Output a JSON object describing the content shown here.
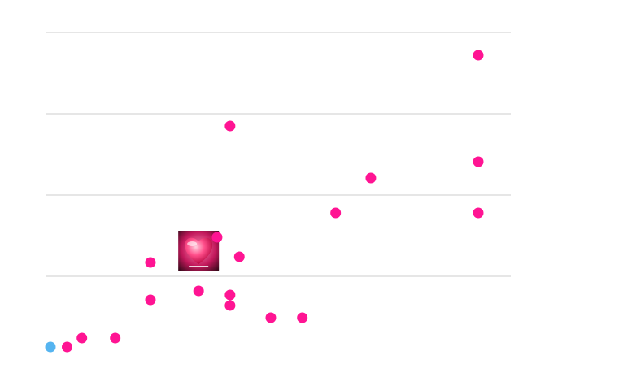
{
  "colors": {
    "background": "#ffffff",
    "gridline": "#cccccc",
    "point": "#ff1493",
    "highlight": "#55b4f0"
  },
  "chart_data": {
    "type": "scatter",
    "title": "",
    "xlabel": "",
    "ylabel": "",
    "grid": "horizontal",
    "gridlines_y": [
      1,
      2,
      3,
      4
    ],
    "xlim": [
      0,
      25
    ],
    "ylim": [
      0,
      4.3
    ],
    "points": [
      {
        "x": 0,
        "y": 0.13,
        "highlight": true
      },
      {
        "x": 0.9,
        "y": 0.13
      },
      {
        "x": 1.7,
        "y": 0.24
      },
      {
        "x": 3.5,
        "y": 0.24
      },
      {
        "x": 5.4,
        "y": 0.71
      },
      {
        "x": 5.4,
        "y": 1.17
      },
      {
        "x": 8.0,
        "y": 0.82
      },
      {
        "x": 9.0,
        "y": 1.48
      },
      {
        "x": 9.7,
        "y": 2.85
      },
      {
        "x": 9.7,
        "y": 0.64
      },
      {
        "x": 9.7,
        "y": 0.77
      },
      {
        "x": 10.2,
        "y": 1.24
      },
      {
        "x": 11.9,
        "y": 0.49
      },
      {
        "x": 13.6,
        "y": 0.49
      },
      {
        "x": 15.4,
        "y": 1.78
      },
      {
        "x": 17.3,
        "y": 2.21
      },
      {
        "x": 23.1,
        "y": 3.72
      },
      {
        "x": 23.1,
        "y": 2.41
      },
      {
        "x": 23.1,
        "y": 1.78
      }
    ],
    "image_marker": {
      "x": 8.0,
      "y": 1.31,
      "name": "heart-image-marker"
    }
  }
}
